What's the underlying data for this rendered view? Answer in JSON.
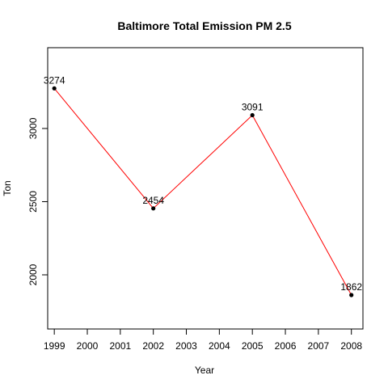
{
  "chart_data": {
    "type": "line",
    "title": "Baltimore Total Emission PM 2.5",
    "xlabel": "Year",
    "ylabel": "Ton",
    "x": [
      1999,
      2002,
      2005,
      2008
    ],
    "values": [
      3274,
      2454,
      3091,
      1862
    ],
    "data_labels": [
      "3274",
      "2454",
      "3091",
      "1862"
    ],
    "x_ticks": [
      1999,
      2000,
      2001,
      2002,
      2003,
      2004,
      2005,
      2006,
      2007,
      2008
    ],
    "y_ticks": [
      2000,
      2500,
      3000
    ],
    "xlim": [
      1998.8,
      2008.35
    ],
    "ylim": [
      1630,
      3552
    ],
    "line_color": "#ff0000",
    "point_color": "#000000",
    "grid": false
  }
}
